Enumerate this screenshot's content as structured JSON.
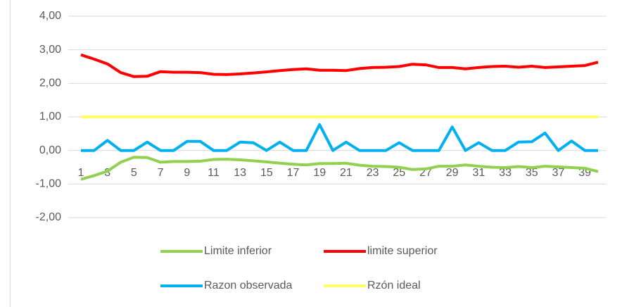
{
  "chart_data": {
    "type": "line",
    "categories": [
      1,
      null,
      3,
      null,
      5,
      null,
      7,
      null,
      9,
      null,
      11,
      null,
      13,
      null,
      15,
      null,
      17,
      null,
      19,
      null,
      21,
      null,
      23,
      null,
      25,
      null,
      27,
      null,
      29,
      null,
      31,
      null,
      33,
      null,
      35,
      null,
      37,
      null,
      39,
      null
    ],
    "series": [
      {
        "name": "Limite inferior",
        "color": "#92d050",
        "values": [
          -0.86,
          -0.75,
          -0.62,
          -0.35,
          -0.2,
          -0.21,
          -0.35,
          -0.33,
          -0.33,
          -0.32,
          -0.27,
          -0.26,
          -0.28,
          -0.31,
          -0.34,
          -0.38,
          -0.41,
          -0.43,
          -0.39,
          -0.39,
          -0.38,
          -0.44,
          -0.47,
          -0.48,
          -0.5,
          -0.57,
          -0.55,
          -0.47,
          -0.47,
          -0.43,
          -0.47,
          -0.5,
          -0.51,
          -0.48,
          -0.51,
          -0.47,
          -0.49,
          -0.51,
          -0.53,
          -0.63
        ]
      },
      {
        "name": "limite superior",
        "color": "#ff0000",
        "values": [
          2.85,
          2.72,
          2.58,
          2.32,
          2.2,
          2.21,
          2.35,
          2.33,
          2.33,
          2.32,
          2.27,
          2.26,
          2.28,
          2.31,
          2.34,
          2.38,
          2.41,
          2.43,
          2.39,
          2.39,
          2.38,
          2.44,
          2.47,
          2.48,
          2.5,
          2.57,
          2.55,
          2.47,
          2.47,
          2.43,
          2.47,
          2.5,
          2.51,
          2.48,
          2.51,
          2.47,
          2.49,
          2.51,
          2.53,
          2.63
        ]
      },
      {
        "name": "Razon observada",
        "color": "#00b0f0",
        "values": [
          0,
          0,
          0.3,
          0,
          0,
          0.25,
          0,
          0,
          0.27,
          0.27,
          0,
          0,
          0.25,
          0.23,
          0,
          0.25,
          0,
          0,
          0.77,
          0,
          0.25,
          0,
          0,
          0,
          0.23,
          0,
          0,
          0,
          0.7,
          0,
          0.23,
          0,
          0,
          0.25,
          0.26,
          0.52,
          0,
          0.28,
          0,
          0
        ]
      },
      {
        "name": "Rzón ideal",
        "color": "#ffff66",
        "values": [
          1,
          1,
          1,
          1,
          1,
          1,
          1,
          1,
          1,
          1,
          1,
          1,
          1,
          1,
          1,
          1,
          1,
          1,
          1,
          1,
          1,
          1,
          1,
          1,
          1,
          1,
          1,
          1,
          1,
          1,
          1,
          1,
          1,
          1,
          1,
          1,
          1,
          1,
          1,
          1
        ]
      }
    ],
    "ylim": [
      -2,
      4
    ],
    "yticks": [
      {
        "value": -2,
        "label": "-2,00"
      },
      {
        "value": -1,
        "label": "-1,00"
      },
      {
        "value": 0,
        "label": "0,00"
      },
      {
        "value": 1,
        "label": "1,00"
      },
      {
        "value": 2,
        "label": "2,00"
      },
      {
        "value": 3,
        "label": "3,00"
      },
      {
        "value": 4,
        "label": "4,00"
      }
    ],
    "grid": true,
    "legend": "bottom"
  }
}
